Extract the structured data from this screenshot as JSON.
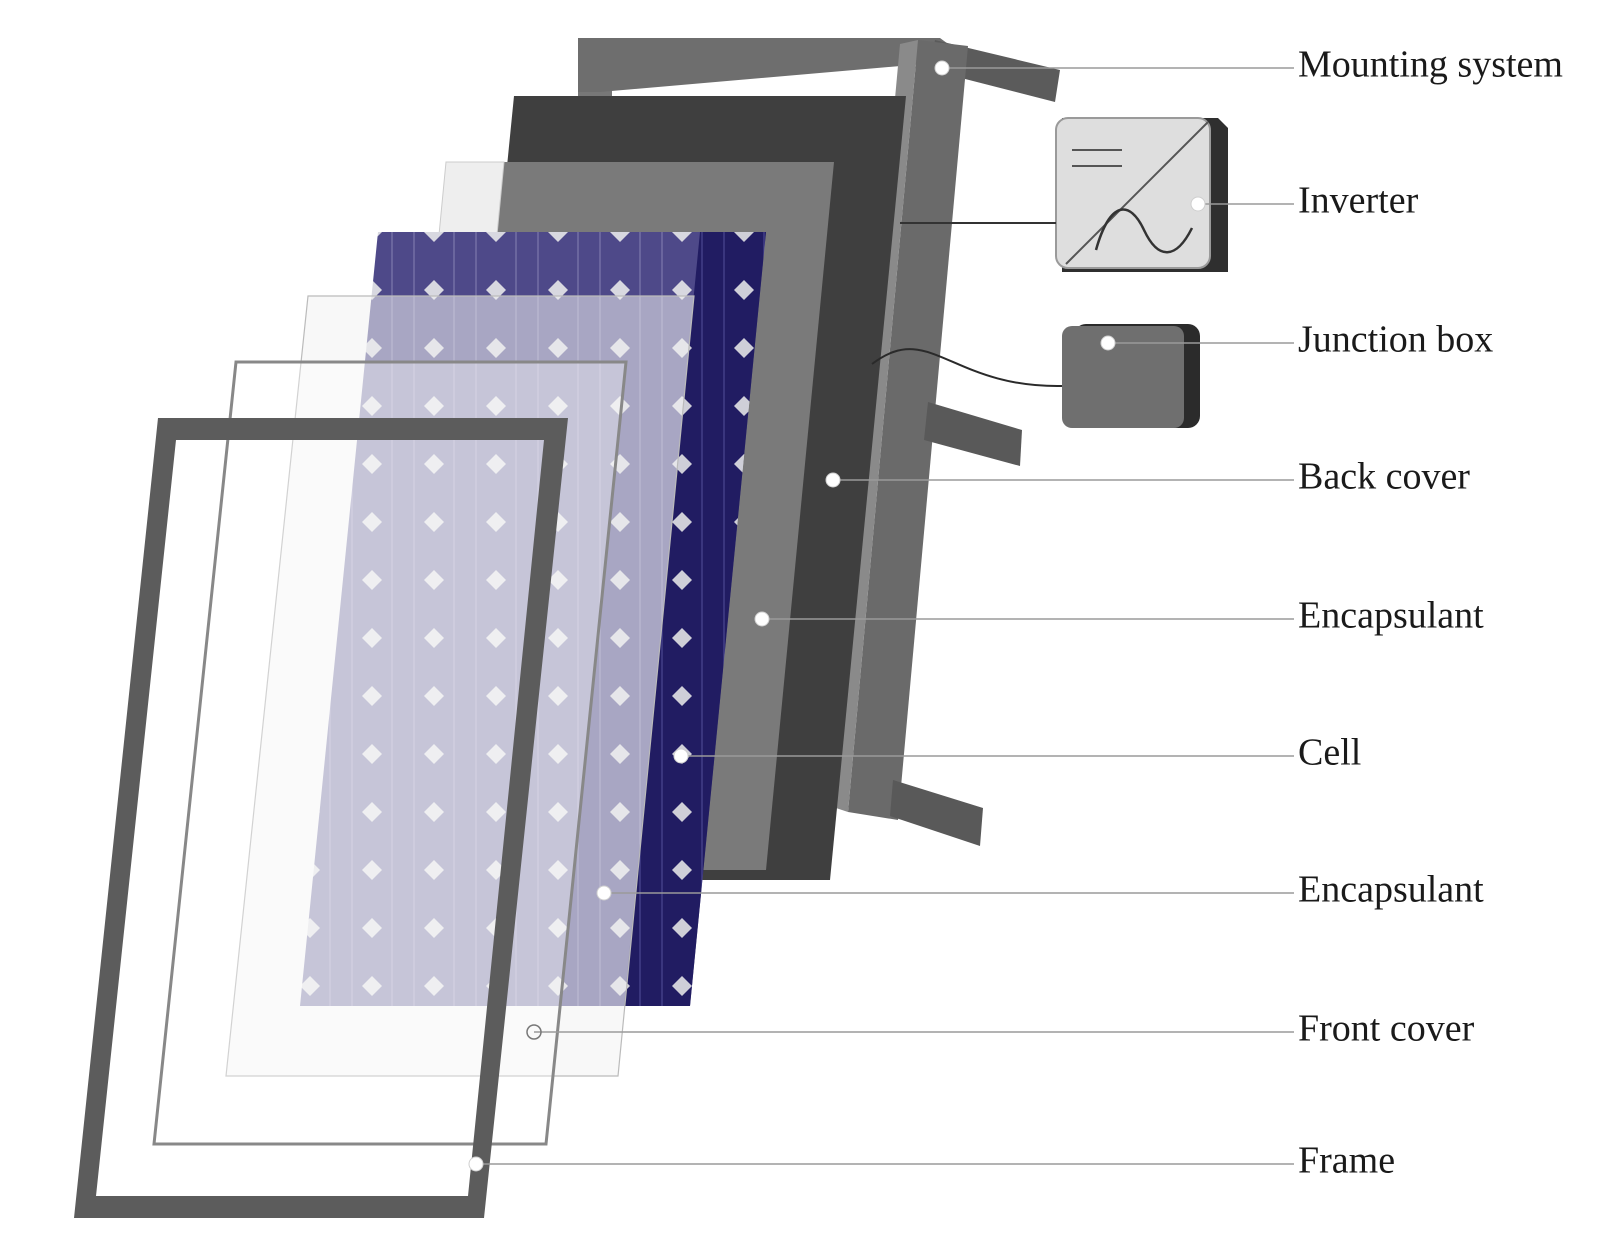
{
  "labels": {
    "mounting_system": "Mounting system",
    "inverter": "Inverter",
    "junction_box": "Junction box",
    "back_cover": "Back cover",
    "encapsulant_rear": "Encapsulant",
    "cell": "Cell",
    "encapsulant_front": "Encapsulant",
    "front_cover": "Front cover",
    "frame": "Frame"
  },
  "colors": {
    "mount": "#6b6b6b",
    "back_cover": "#3f3f3f",
    "encapsulant_rear": "#7a7a7a",
    "cell_front": "#4a4480",
    "cell_side": "#1f1b5e",
    "frame": "#5c5c5c"
  }
}
